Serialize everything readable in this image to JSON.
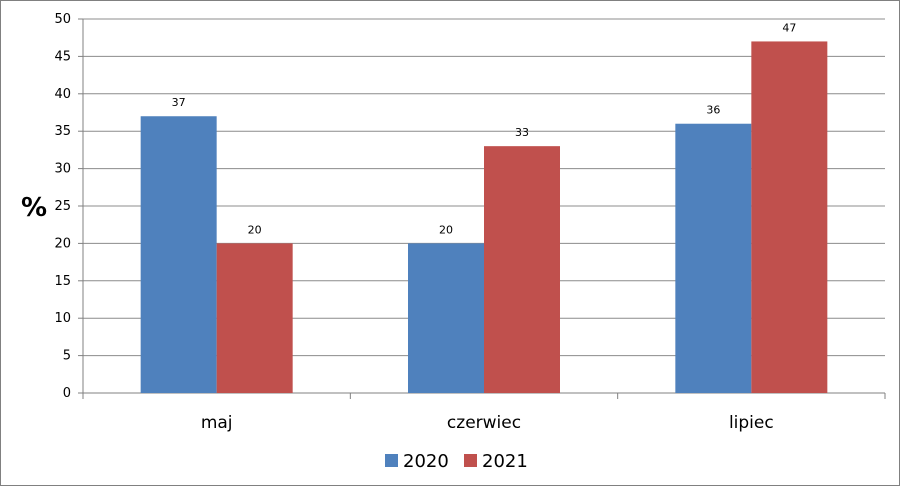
{
  "chart_data": {
    "type": "bar",
    "title": "",
    "xlabel": "",
    "ylabel": "%",
    "categories": [
      "maj",
      "czerwiec",
      "lipiec"
    ],
    "series": [
      {
        "name": "2020",
        "values": [
          37,
          20,
          36
        ],
        "color": "#4f81bd"
      },
      {
        "name": "2021",
        "values": [
          20,
          33,
          47
        ],
        "color": "#c0504d"
      }
    ],
    "ylim": [
      0,
      50
    ],
    "yticks": [
      0,
      5,
      10,
      15,
      20,
      25,
      30,
      35,
      40,
      45,
      50
    ],
    "grid": true,
    "data_labels": true,
    "legend": "bottom-center"
  }
}
